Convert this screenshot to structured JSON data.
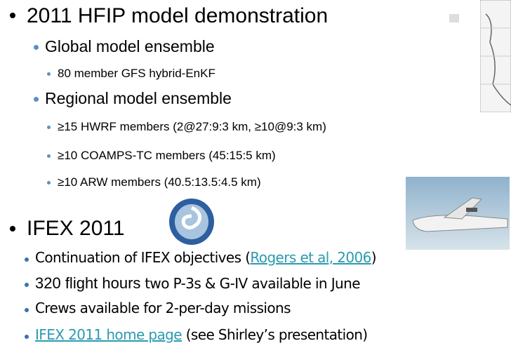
{
  "slide": {
    "hfip": {
      "title": "2011 HFIP model demonstration",
      "global": {
        "title": "Global model ensemble",
        "items": [
          "80 member GFS hybrid-EnKF"
        ]
      },
      "regional": {
        "title": "Regional model ensemble",
        "items": [
          "≥15 HWRF members (2@27:9:3 km, ≥10@9:3 km)",
          "≥10 COAMPS-TC members (45:15:5 km)",
          "≥10 ARW members (40.5:13.5:4.5 km)"
        ]
      }
    },
    "ifex": {
      "title": "IFEX 2011",
      "items": [
        {
          "before": "Continuation of IFEX objectives (",
          "link": "Rogers et al, 2006",
          "after": ")"
        },
        {
          "emphasis": "320 flight hours",
          "after": " two P-3s & G-IV available in June"
        },
        {
          "text": "Crews available for 2-per-day missions"
        },
        {
          "link": "IFEX 2011 home page",
          "after": " (see Shirley’s presentation)"
        }
      ]
    }
  }
}
